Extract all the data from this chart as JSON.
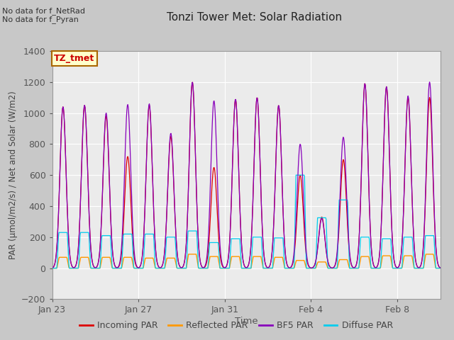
{
  "title": "Tonzi Tower Met: Solar Radiation",
  "ylabel": "PAR (μmol/m2/s) / Net and Solar (W/m2)",
  "xlabel": "Time",
  "ylim": [
    -200,
    1400
  ],
  "bg_color": "#ebebeb",
  "fig_bg_color": "#c8c8c8",
  "note1": "No data for f_NetRad",
  "note2": "No data for f_Pyran",
  "legend_box_text": "TZ_tmet",
  "legend_box_bg": "#ffffcc",
  "legend_box_border": "#aa6600",
  "colors": {
    "incoming": "#dd0000",
    "reflected": "#ff9900",
    "bf5": "#8800bb",
    "diffuse": "#00ccee"
  },
  "legend_labels": [
    "Incoming PAR",
    "Reflected PAR",
    "BF5 PAR",
    "Diffuse PAR"
  ],
  "xtick_labels": [
    "Jan 23",
    "Jan 27",
    "Jan 31",
    "Feb 4",
    "Feb 8"
  ],
  "ytick_values": [
    -200,
    0,
    200,
    400,
    600,
    800,
    1000,
    1200,
    1400
  ],
  "n_days": 18,
  "bf5_peaks": [
    1040,
    1050,
    1000,
    1055,
    1060,
    870,
    1200,
    1080,
    1090,
    1100,
    1050,
    800,
    320,
    845,
    1190,
    1170,
    1110,
    1200
  ],
  "incoming_peaks": [
    1040,
    1050,
    980,
    720,
    1050,
    850,
    1200,
    650,
    1090,
    1100,
    1050,
    600,
    330,
    700,
    1190,
    1170,
    1100,
    1100
  ],
  "reflected_peaks": [
    70,
    70,
    70,
    70,
    65,
    65,
    90,
    75,
    75,
    75,
    70,
    50,
    40,
    55,
    75,
    80,
    80,
    90
  ],
  "diffuse_peaks": [
    230,
    230,
    210,
    220,
    220,
    200,
    240,
    165,
    190,
    200,
    195,
    600,
    325,
    440,
    200,
    190,
    200,
    210
  ]
}
